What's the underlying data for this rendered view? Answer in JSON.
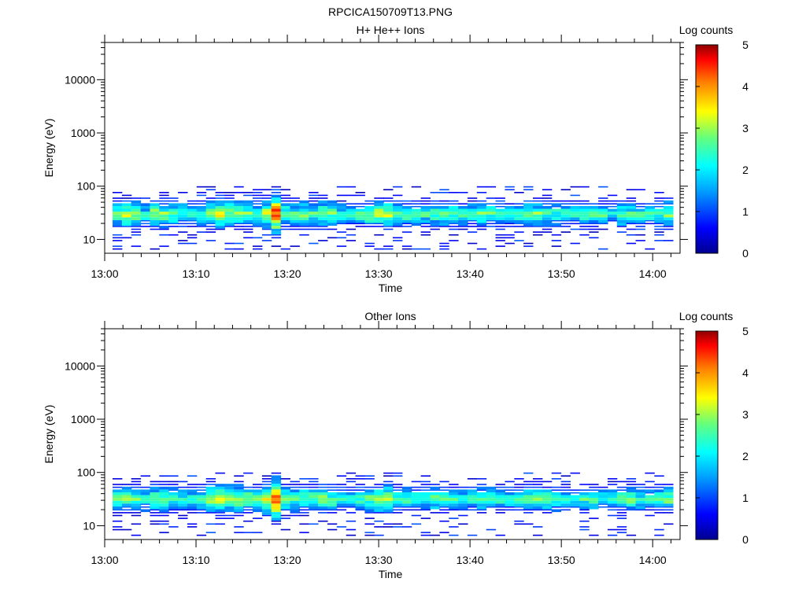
{
  "figure": {
    "title": "RPCICA150709T13.PNG"
  },
  "chart_data": [
    {
      "type": "heatmap",
      "title": "H+ He++ Ions",
      "xlabel": "Time",
      "ylabel": "Energy (eV)",
      "y_scale": "log",
      "xlim": [
        "13:00",
        "14:03"
      ],
      "ylim": [
        5.5,
        50000
      ],
      "x_ticks": [
        "13:00",
        "13:10",
        "13:20",
        "13:30",
        "13:40",
        "13:50",
        "14:00"
      ],
      "y_ticks": [
        "10",
        "100",
        "1000",
        "10000"
      ],
      "colorbar": {
        "label": "Log counts",
        "min": 0,
        "max": 5,
        "ticks": [
          "0",
          "1",
          "2",
          "3",
          "4",
          "5"
        ]
      },
      "band": {
        "description_values": "log counts per time bin along the main energy band",
        "center_energy_eV": 28,
        "peak_log_counts": [
          3.0,
          3.3,
          3.0,
          2.6,
          3.2,
          3.1,
          2.8,
          2.7,
          2.6,
          2.8,
          3.2,
          3.4,
          3.2,
          3.1,
          3.0,
          2.9,
          3.4,
          4.6,
          3.0,
          2.8,
          3.0,
          2.7,
          3.1,
          2.9,
          2.6,
          2.5,
          2.7,
          3.0,
          3.2,
          3.3,
          2.8,
          2.7,
          2.6,
          2.7,
          2.8,
          2.8,
          2.7,
          2.6,
          2.7,
          2.9,
          2.8,
          2.6,
          2.5,
          2.7,
          3.0,
          3.0,
          2.8,
          2.7,
          2.6,
          2.5,
          2.8,
          2.7,
          2.6,
          2.5,
          2.8,
          2.9,
          2.6,
          2.5,
          2.8,
          3.1
        ]
      }
    },
    {
      "type": "heatmap",
      "title": "Other Ions",
      "xlabel": "Time",
      "ylabel": "Energy (eV)",
      "y_scale": "log",
      "xlim": [
        "13:00",
        "14:03"
      ],
      "ylim": [
        5.5,
        50000
      ],
      "x_ticks": [
        "13:00",
        "13:10",
        "13:20",
        "13:30",
        "13:40",
        "13:50",
        "14:00"
      ],
      "y_ticks": [
        "10",
        "100",
        "1000",
        "10000"
      ],
      "colorbar": {
        "label": "Log counts",
        "min": 0,
        "max": 5,
        "ticks": [
          "0",
          "1",
          "2",
          "3",
          "4",
          "5"
        ]
      },
      "band": {
        "description_values": "log counts per time bin along the main energy band",
        "center_energy_eV": 30,
        "peak_log_counts": [
          2.8,
          3.0,
          2.9,
          2.6,
          3.1,
          3.0,
          2.8,
          2.6,
          2.6,
          2.7,
          3.3,
          3.5,
          3.3,
          3.2,
          3.0,
          2.9,
          3.5,
          4.7,
          3.0,
          2.8,
          2.9,
          2.8,
          3.1,
          2.9,
          2.6,
          2.5,
          2.6,
          2.9,
          3.3,
          3.3,
          2.8,
          2.7,
          2.6,
          2.7,
          2.8,
          2.8,
          2.6,
          2.6,
          2.7,
          2.8,
          2.8,
          2.6,
          2.5,
          2.7,
          2.9,
          2.9,
          2.8,
          2.7,
          2.6,
          2.5,
          2.7,
          2.7,
          2.6,
          2.5,
          2.7,
          2.9,
          2.6,
          2.5,
          2.8,
          3.0
        ]
      }
    }
  ]
}
